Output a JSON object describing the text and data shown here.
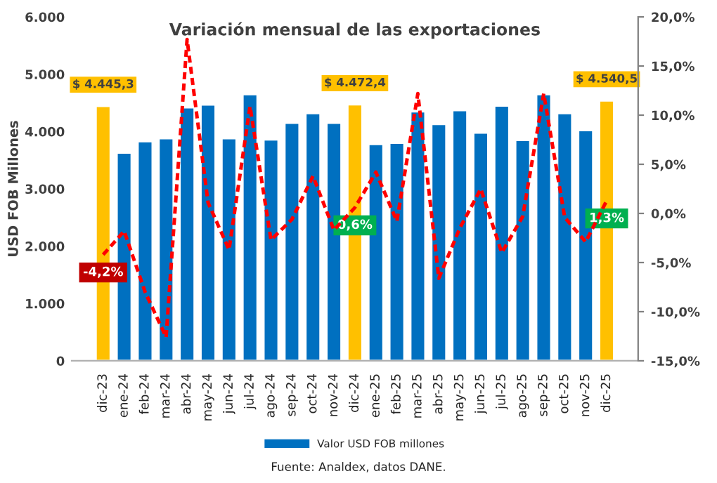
{
  "chart_data": {
    "type": "bar",
    "title": "Variación mensual de las exportaciones",
    "ylabel": "USD FOB Millones",
    "categories": [
      "dic-23",
      "ene-24",
      "feb-24",
      "mar-24",
      "abr-24",
      "may-24",
      "jun-24",
      "jul-24",
      "ago-24",
      "sep-24",
      "oct-24",
      "nov-24",
      "dic-24",
      "ene-25",
      "feb-25",
      "mar-25",
      "abr-25",
      "may-25",
      "jun-25",
      "jul-25",
      "ago-25",
      "sep-25",
      "oct-25",
      "nov-25",
      "dic-25"
    ],
    "series": [
      {
        "name": "Valor USD FOB millones",
        "color": "#0070c0",
        "colors": [
          "#ffc000",
          "#0070c0",
          "#0070c0",
          "#0070c0",
          "#0070c0",
          "#0070c0",
          "#0070c0",
          "#0070c0",
          "#0070c0",
          "#0070c0",
          "#0070c0",
          "#0070c0",
          "#ffc000",
          "#0070c0",
          "#0070c0",
          "#0070c0",
          "#0070c0",
          "#0070c0",
          "#0070c0",
          "#0070c0",
          "#0070c0",
          "#0070c0",
          "#0070c0",
          "#0070c0",
          "#ffc000"
        ],
        "values": [
          4445.3,
          3630,
          3830,
          3880,
          4420,
          4470,
          3880,
          4650,
          3860,
          4150,
          4320,
          4150,
          4472.4,
          3780,
          3800,
          4350,
          4130,
          4370,
          3980,
          4450,
          3850,
          4650,
          4320,
          4020,
          4540.5
        ],
        "value_labels": [
          "$ 4.445,3",
          null,
          null,
          null,
          null,
          null,
          null,
          null,
          null,
          null,
          null,
          null,
          "$ 4.472,4",
          null,
          null,
          null,
          null,
          null,
          null,
          null,
          null,
          null,
          null,
          null,
          "$ 4.540,5"
        ]
      },
      {
        "type": "line",
        "axis": "y2",
        "color": "#ff0000",
        "line_style": "dashed",
        "values": [
          -4.2,
          -1.8,
          -8.0,
          -12.6,
          17.7,
          1.1,
          -3.7,
          10.9,
          -2.7,
          -0.6,
          3.8,
          -1.7,
          0.6,
          4.2,
          -0.8,
          12.2,
          -6.6,
          -1.5,
          2.5,
          -4.0,
          -0.3,
          12.2,
          -0.4,
          -2.9,
          1.3
        ],
        "value_labels": [
          "-4,2%",
          null,
          null,
          null,
          null,
          null,
          null,
          null,
          null,
          null,
          null,
          null,
          "0,6%",
          null,
          null,
          null,
          null,
          null,
          null,
          null,
          null,
          null,
          null,
          null,
          "1,3%"
        ]
      }
    ],
    "ylim": [
      0,
      6000
    ],
    "yticks": [
      0,
      {
        "value": 1000,
        "label": "1.000"
      },
      {
        "value": 2000,
        "label": "2.000"
      },
      {
        "value": 3000,
        "label": "3.000"
      },
      {
        "value": 4000,
        "label": "4.000"
      },
      {
        "value": 5000,
        "label": "5.000"
      },
      {
        "value": 6000,
        "label": "6.000"
      }
    ],
    "y2lim": [
      -15,
      20
    ],
    "y2ticks": [
      {
        "value": -15,
        "label": "-15,0%"
      },
      {
        "value": -10,
        "label": "-10,0%"
      },
      {
        "value": -5,
        "label": "-5,0%"
      },
      {
        "value": 0,
        "label": "0,0%"
      },
      {
        "value": 5,
        "label": "5,0%"
      },
      {
        "value": 10,
        "label": "10,0%"
      },
      {
        "value": 15,
        "label": "15,0%"
      },
      {
        "value": 20,
        "label": "20,0%"
      }
    ],
    "legend": "bottom",
    "grid": false,
    "annotations": [
      "Fuente: Analdex, datos DANE."
    ]
  }
}
